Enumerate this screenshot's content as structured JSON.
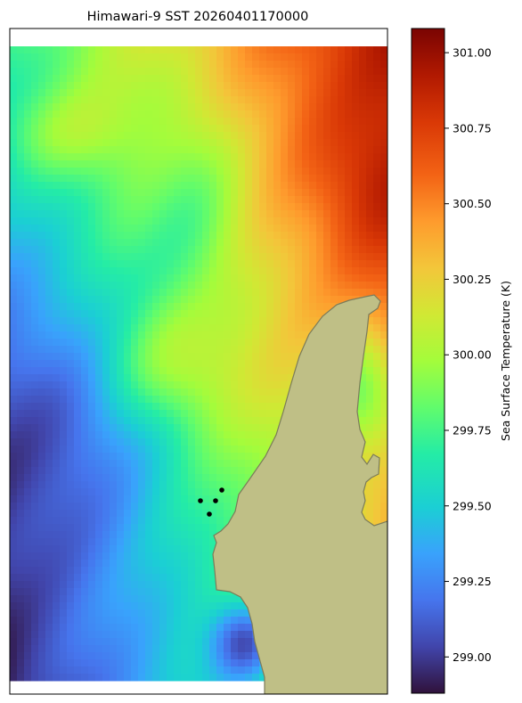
{
  "chart_data": {
    "type": "heatmap",
    "title": "Himawari-9 SST 20260401170000",
    "colorbar": {
      "label": "Sea Surface Temperature (K)",
      "range": [
        298.88,
        301.08
      ],
      "ticks": [
        "299.00",
        "299.25",
        "299.50",
        "299.75",
        "300.00",
        "300.25",
        "300.50",
        "300.75",
        "301.00"
      ],
      "colormap": "turbo"
    },
    "land_color": "#bfbf86",
    "coast_color": "#7b7b5a",
    "grid": false,
    "markers": [
      {
        "name": "station",
        "color": "#000000"
      },
      {
        "name": "station",
        "color": "#000000"
      },
      {
        "name": "station",
        "color": "#000000"
      },
      {
        "name": "station",
        "color": "#000000"
      }
    ],
    "field_description": "Warm core (~301 K) in the northeast, gradient to ~299.3 K in the southwest; cold pocket (~298.9 K) near southern coast."
  }
}
